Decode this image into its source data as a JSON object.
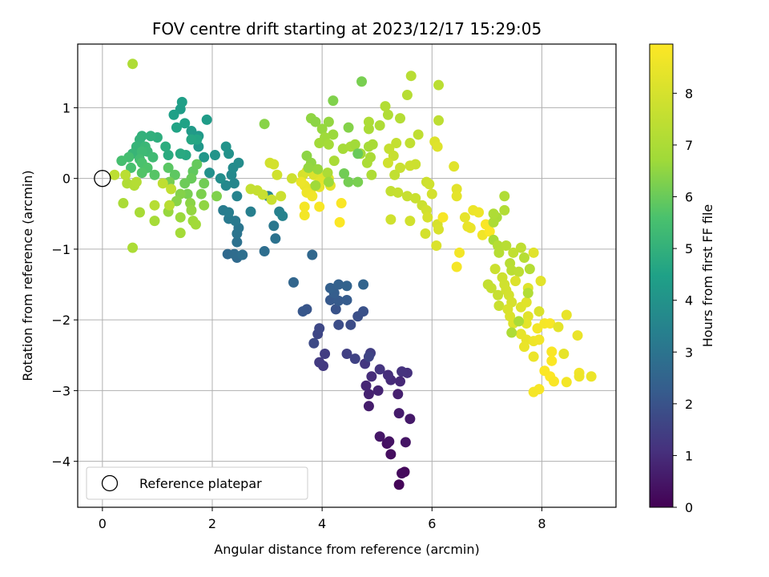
{
  "chart_data": {
    "type": "scatter",
    "title": "FOV centre drift starting at 2023/12/17 15:29:05",
    "xlabel": "Angular distance from reference (arcmin)",
    "ylabel": "Rotation from reference (arcmin)",
    "xlim": [
      -0.45,
      9.35
    ],
    "ylim": [
      -4.65,
      1.9
    ],
    "xticks": [
      0,
      2,
      4,
      6,
      8
    ],
    "yticks": [
      -4,
      -3,
      -2,
      -1,
      0,
      1
    ],
    "grid": true,
    "colormap": "viridis",
    "colorbar": {
      "label": "Hours from first FF file",
      "range": [
        0,
        8.95
      ],
      "ticks": [
        0,
        1,
        2,
        3,
        4,
        5,
        6,
        7,
        8
      ]
    },
    "legend": {
      "placement": "lower-left",
      "entries": [
        "Reference platepar"
      ]
    },
    "reference_point": {
      "x": 0,
      "y": 0
    },
    "points": [
      [
        5.4,
        -4.33,
        0.1
      ],
      [
        5.5,
        -4.15,
        0.15
      ],
      [
        5.45,
        -4.17,
        0.2
      ],
      [
        5.25,
        -3.9,
        0.3
      ],
      [
        5.18,
        -3.75,
        0.35
      ],
      [
        5.22,
        -3.72,
        0.4
      ],
      [
        5.52,
        -3.73,
        0.45
      ],
      [
        5.05,
        -3.65,
        0.5
      ],
      [
        5.6,
        -3.4,
        0.55
      ],
      [
        5.4,
        -3.32,
        0.6
      ],
      [
        4.85,
        -3.22,
        0.65
      ],
      [
        5.38,
        -3.05,
        0.7
      ],
      [
        4.85,
        -3.05,
        0.75
      ],
      [
        5.02,
        -3.0,
        0.8
      ],
      [
        4.8,
        -2.93,
        0.85
      ],
      [
        5.42,
        -2.87,
        0.9
      ],
      [
        5.25,
        -2.85,
        0.95
      ],
      [
        4.9,
        -2.8,
        1.0
      ],
      [
        5.2,
        -2.78,
        1.05
      ],
      [
        5.55,
        -2.75,
        1.1
      ],
      [
        5.45,
        -2.73,
        1.15
      ],
      [
        5.05,
        -2.7,
        1.2
      ],
      [
        4.78,
        -2.62,
        1.25
      ],
      [
        4.02,
        -2.65,
        1.3
      ],
      [
        3.95,
        -2.6,
        1.35
      ],
      [
        4.05,
        -2.48,
        1.4
      ],
      [
        4.88,
        -2.47,
        1.45
      ],
      [
        4.45,
        -2.48,
        1.5
      ],
      [
        4.6,
        -2.55,
        1.55
      ],
      [
        4.85,
        -2.52,
        1.6
      ],
      [
        3.92,
        -2.2,
        1.65
      ],
      [
        3.95,
        -2.12,
        1.7
      ],
      [
        3.85,
        -2.33,
        1.75
      ],
      [
        4.52,
        -2.07,
        1.8
      ],
      [
        4.3,
        -2.07,
        1.85
      ],
      [
        4.65,
        -1.95,
        1.9
      ],
      [
        4.75,
        -1.88,
        1.95
      ],
      [
        4.25,
        -1.85,
        2.0
      ],
      [
        3.72,
        -1.85,
        2.05
      ],
      [
        3.65,
        -1.88,
        2.1
      ],
      [
        4.15,
        -1.72,
        2.15
      ],
      [
        4.3,
        -1.73,
        2.2
      ],
      [
        4.45,
        -1.72,
        2.25
      ],
      [
        4.22,
        -1.62,
        2.3
      ],
      [
        4.15,
        -1.55,
        2.35
      ],
      [
        4.3,
        -1.5,
        2.4
      ],
      [
        4.45,
        -1.52,
        2.45
      ],
      [
        4.75,
        -1.5,
        2.5
      ],
      [
        3.48,
        -1.47,
        2.55
      ],
      [
        3.82,
        -1.08,
        2.6
      ],
      [
        2.28,
        -1.07,
        2.65
      ],
      [
        2.45,
        -1.12,
        2.7
      ],
      [
        2.4,
        -1.07,
        2.75
      ],
      [
        2.95,
        -1.03,
        2.8
      ],
      [
        2.55,
        -1.08,
        2.85
      ],
      [
        2.45,
        -0.9,
        2.9
      ],
      [
        3.15,
        -0.85,
        2.95
      ],
      [
        2.45,
        -0.78,
        3.0
      ],
      [
        2.48,
        -0.7,
        3.05
      ],
      [
        3.12,
        -0.67,
        3.1
      ],
      [
        2.42,
        -0.6,
        3.15
      ],
      [
        2.3,
        -0.57,
        3.2
      ],
      [
        2.2,
        -0.45,
        3.25
      ],
      [
        2.3,
        -0.48,
        3.3
      ],
      [
        2.7,
        -0.47,
        3.35
      ],
      [
        3.22,
        -0.47,
        3.4
      ],
      [
        3.28,
        -0.53,
        3.45
      ],
      [
        2.45,
        -0.25,
        3.5
      ],
      [
        3.02,
        -0.25,
        3.55
      ],
      [
        2.4,
        -0.07,
        3.6
      ],
      [
        2.25,
        -0.1,
        3.65
      ],
      [
        2.35,
        0.05,
        3.7
      ],
      [
        2.38,
        0.15,
        3.75
      ],
      [
        2.48,
        0.22,
        3.8
      ],
      [
        2.15,
        0.0,
        3.85
      ],
      [
        1.95,
        0.08,
        3.9
      ],
      [
        2.3,
        0.35,
        3.95
      ],
      [
        2.25,
        0.45,
        4.0
      ],
      [
        2.05,
        0.33,
        4.05
      ],
      [
        1.85,
        0.3,
        4.1
      ],
      [
        1.75,
        0.45,
        4.15
      ],
      [
        1.75,
        0.6,
        4.2
      ],
      [
        1.62,
        0.67,
        4.25
      ],
      [
        1.9,
        0.83,
        4.3
      ],
      [
        1.42,
        0.98,
        4.35
      ],
      [
        1.45,
        1.08,
        4.4
      ],
      [
        1.3,
        0.9,
        4.45
      ],
      [
        1.5,
        0.78,
        4.5
      ],
      [
        1.35,
        0.72,
        4.55
      ],
      [
        1.72,
        0.55,
        4.6
      ],
      [
        1.62,
        0.55,
        4.65
      ],
      [
        1.52,
        0.33,
        4.7
      ],
      [
        1.42,
        0.35,
        4.75
      ],
      [
        1.2,
        0.33,
        4.8
      ],
      [
        1.15,
        0.45,
        4.85
      ],
      [
        1.0,
        0.58,
        4.9
      ],
      [
        0.88,
        0.6,
        4.95
      ],
      [
        0.72,
        0.6,
        5.0
      ],
      [
        0.68,
        0.55,
        5.05
      ],
      [
        0.62,
        0.45,
        5.1
      ],
      [
        0.55,
        0.35,
        5.15
      ],
      [
        0.78,
        0.45,
        5.2
      ],
      [
        0.82,
        0.38,
        5.25
      ],
      [
        0.72,
        0.38,
        5.3
      ],
      [
        0.92,
        0.3,
        5.35
      ],
      [
        0.68,
        0.27,
        5.4
      ],
      [
        0.48,
        0.3,
        5.45
      ],
      [
        0.35,
        0.25,
        5.5
      ],
      [
        0.52,
        0.15,
        5.55
      ],
      [
        0.72,
        0.22,
        5.6
      ],
      [
        0.82,
        0.15,
        5.65
      ],
      [
        0.72,
        0.08,
        5.7
      ],
      [
        0.95,
        0.05,
        5.75
      ],
      [
        1.2,
        0.15,
        5.8
      ],
      [
        1.32,
        0.05,
        5.85
      ],
      [
        1.65,
        0.1,
        5.9
      ],
      [
        1.72,
        0.2,
        5.95
      ],
      [
        1.62,
        0.0,
        6.0
      ],
      [
        1.5,
        -0.07,
        6.05
      ],
      [
        1.85,
        -0.07,
        6.1
      ],
      [
        1.22,
        -0.05,
        6.15
      ],
      [
        1.55,
        -0.22,
        6.2
      ],
      [
        1.8,
        -0.22,
        6.25
      ],
      [
        2.08,
        -0.25,
        6.3
      ],
      [
        1.42,
        -0.22,
        6.35
      ],
      [
        1.35,
        -0.32,
        6.4
      ],
      [
        1.6,
        -0.35,
        6.45
      ],
      [
        1.85,
        -0.38,
        6.5
      ],
      [
        1.62,
        -0.45,
        6.55
      ],
      [
        1.2,
        -0.47,
        6.6
      ],
      [
        1.42,
        -0.55,
        6.65
      ],
      [
        1.65,
        -0.6,
        6.7
      ],
      [
        1.7,
        -0.65,
        6.75
      ],
      [
        1.42,
        -0.77,
        6.8
      ],
      [
        0.95,
        -0.6,
        6.85
      ],
      [
        0.68,
        -0.48,
        6.9
      ],
      [
        0.38,
        -0.35,
        6.95
      ],
      [
        0.55,
        -0.98,
        7.0
      ],
      [
        0.55,
        1.62,
        7.05
      ],
      [
        0.45,
        -0.07,
        7.1
      ],
      [
        0.58,
        -0.1,
        7.15
      ],
      [
        0.62,
        -0.05,
        7.2
      ],
      [
        0.95,
        -0.38,
        7.25
      ],
      [
        1.22,
        -0.38,
        7.3
      ],
      [
        0.42,
        0.05,
        7.35
      ],
      [
        0.22,
        0.05,
        7.4
      ],
      [
        1.1,
        -0.07,
        7.45
      ],
      [
        1.25,
        -0.15,
        7.5
      ],
      [
        2.7,
        -0.15,
        7.55
      ],
      [
        2.82,
        -0.17,
        7.6
      ],
      [
        2.92,
        -0.23,
        7.65
      ],
      [
        3.08,
        -0.3,
        7.7
      ],
      [
        3.25,
        -0.25,
        7.75
      ],
      [
        3.45,
        0.0,
        7.8
      ],
      [
        3.18,
        0.05,
        7.85
      ],
      [
        3.05,
        0.22,
        7.9
      ],
      [
        3.12,
        0.2,
        7.95
      ],
      [
        3.65,
        0.05,
        8.0
      ],
      [
        3.72,
        0.1,
        8.05
      ],
      [
        3.85,
        0.05,
        8.1
      ],
      [
        3.88,
        0.08,
        8.15
      ],
      [
        4.02,
        0.02,
        8.2
      ],
      [
        4.12,
        0.0,
        8.25
      ],
      [
        3.95,
        -0.05,
        8.3
      ],
      [
        4.15,
        -0.1,
        8.35
      ],
      [
        3.95,
        -0.12,
        8.4
      ],
      [
        3.8,
        -0.15,
        8.45
      ],
      [
        3.68,
        -0.1,
        8.5
      ],
      [
        3.62,
        -0.05,
        8.55
      ],
      [
        3.72,
        -0.2,
        8.6
      ],
      [
        3.82,
        -0.25,
        8.65
      ],
      [
        3.68,
        -0.52,
        8.7
      ],
      [
        3.68,
        -0.4,
        8.75
      ],
      [
        3.95,
        -0.4,
        8.8
      ],
      [
        4.35,
        -0.35,
        8.85
      ],
      [
        4.32,
        -0.62,
        8.9
      ],
      [
        2.95,
        0.77,
        6.4
      ],
      [
        3.8,
        0.85,
        6.5
      ],
      [
        3.88,
        0.8,
        6.45
      ],
      [
        4.12,
        0.8,
        6.55
      ],
      [
        4.0,
        0.7,
        6.6
      ],
      [
        4.2,
        0.62,
        6.65
      ],
      [
        4.05,
        0.58,
        6.7
      ],
      [
        3.95,
        0.5,
        6.75
      ],
      [
        4.12,
        0.48,
        6.8
      ],
      [
        4.38,
        0.42,
        6.85
      ],
      [
        4.52,
        0.45,
        6.9
      ],
      [
        4.22,
        0.25,
        6.95
      ],
      [
        4.1,
        0.08,
        7.0
      ],
      [
        4.2,
        1.1,
        6.3
      ],
      [
        4.48,
        0.72,
        6.35
      ],
      [
        3.72,
        0.32,
        6.45
      ],
      [
        3.8,
        0.22,
        6.5
      ],
      [
        3.75,
        0.15,
        6.55
      ],
      [
        3.92,
        0.13,
        6.6
      ],
      [
        4.12,
        -0.05,
        6.65
      ],
      [
        3.88,
        -0.1,
        6.7
      ],
      [
        4.6,
        0.48,
        6.75
      ],
      [
        4.7,
        0.35,
        6.8
      ],
      [
        4.85,
        0.45,
        6.85
      ],
      [
        4.92,
        0.48,
        6.9
      ],
      [
        4.85,
        0.7,
        6.95
      ],
      [
        4.85,
        0.8,
        7.0
      ],
      [
        5.05,
        0.75,
        7.05
      ],
      [
        5.2,
        0.9,
        7.1
      ],
      [
        5.15,
        1.02,
        7.15
      ],
      [
        5.42,
        0.85,
        7.2
      ],
      [
        5.55,
        1.18,
        7.25
      ],
      [
        5.62,
        1.45,
        7.3
      ],
      [
        6.12,
        1.32,
        7.35
      ],
      [
        6.12,
        0.82,
        7.4
      ],
      [
        5.75,
        0.62,
        7.45
      ],
      [
        5.6,
        0.5,
        7.5
      ],
      [
        5.35,
        0.5,
        7.55
      ],
      [
        5.22,
        0.42,
        7.6
      ],
      [
        5.3,
        0.32,
        7.65
      ],
      [
        5.42,
        0.15,
        7.7
      ],
      [
        5.7,
        0.2,
        7.75
      ],
      [
        5.6,
        0.18,
        7.8
      ],
      [
        5.2,
        0.22,
        7.85
      ],
      [
        4.88,
        0.3,
        6.95
      ],
      [
        4.82,
        0.22,
        7.0
      ],
      [
        4.9,
        0.05,
        7.05
      ],
      [
        4.72,
        1.37,
        6.2
      ],
      [
        4.65,
        0.35,
        6.0
      ],
      [
        4.4,
        0.07,
        6.1
      ],
      [
        4.48,
        -0.05,
        6.15
      ],
      [
        4.65,
        -0.05,
        6.2
      ],
      [
        5.32,
        0.05,
        7.5
      ],
      [
        5.25,
        -0.18,
        7.55
      ],
      [
        5.38,
        -0.2,
        7.6
      ],
      [
        5.55,
        -0.25,
        7.65
      ],
      [
        5.7,
        -0.28,
        7.7
      ],
      [
        5.82,
        -0.38,
        7.75
      ],
      [
        5.9,
        -0.05,
        7.8
      ],
      [
        5.95,
        -0.08,
        7.85
      ],
      [
        5.9,
        -0.45,
        7.9
      ],
      [
        6.0,
        -0.22,
        7.95
      ],
      [
        5.92,
        -0.55,
        8.0
      ],
      [
        5.25,
        -0.58,
        7.85
      ],
      [
        5.6,
        -0.6,
        7.9
      ],
      [
        5.88,
        -0.78,
        7.95
      ],
      [
        6.1,
        -0.65,
        8.0
      ],
      [
        6.12,
        -0.72,
        8.05
      ],
      [
        6.08,
        -0.95,
        8.1
      ],
      [
        6.05,
        0.52,
        8.15
      ],
      [
        6.1,
        0.45,
        8.2
      ],
      [
        6.4,
        0.17,
        8.25
      ],
      [
        6.45,
        -0.15,
        8.3
      ],
      [
        6.45,
        -0.25,
        8.35
      ],
      [
        6.6,
        -0.55,
        8.4
      ],
      [
        6.65,
        -0.68,
        8.45
      ],
      [
        6.7,
        -0.7,
        8.5
      ],
      [
        6.75,
        -0.45,
        8.55
      ],
      [
        6.85,
        -0.48,
        8.6
      ],
      [
        6.92,
        -0.8,
        8.65
      ],
      [
        6.5,
        -1.05,
        8.7
      ],
      [
        6.45,
        -1.25,
        8.75
      ],
      [
        6.2,
        -0.55,
        8.8
      ],
      [
        6.98,
        -0.65,
        8.85
      ],
      [
        7.05,
        -0.75,
        8.9
      ],
      [
        7.12,
        -0.87,
        6.9
      ],
      [
        7.18,
        -0.55,
        6.95
      ],
      [
        7.12,
        -0.62,
        7.0
      ],
      [
        7.12,
        -0.5,
        7.05
      ],
      [
        7.32,
        -0.25,
        7.1
      ],
      [
        7.32,
        -0.45,
        7.15
      ],
      [
        7.2,
        -0.95,
        7.2
      ],
      [
        7.22,
        -1.05,
        7.25
      ],
      [
        7.42,
        -1.2,
        7.3
      ],
      [
        7.45,
        -1.3,
        7.35
      ],
      [
        7.58,
        -1.32,
        7.4
      ],
      [
        7.62,
        -0.98,
        7.45
      ],
      [
        7.48,
        -1.05,
        7.5
      ],
      [
        7.02,
        -1.5,
        7.55
      ],
      [
        7.08,
        -1.55,
        7.6
      ],
      [
        7.2,
        -1.65,
        7.65
      ],
      [
        7.22,
        -1.8,
        7.7
      ],
      [
        7.15,
        -1.28,
        7.75
      ],
      [
        7.28,
        -1.4,
        7.8
      ],
      [
        7.32,
        -1.5,
        7.85
      ],
      [
        7.35,
        -1.58,
        7.9
      ],
      [
        7.4,
        -1.65,
        7.95
      ],
      [
        7.45,
        -1.75,
        8.0
      ],
      [
        7.38,
        -1.85,
        8.05
      ],
      [
        7.42,
        -1.95,
        8.1
      ],
      [
        7.48,
        -2.05,
        8.15
      ],
      [
        7.62,
        -1.82,
        8.2
      ],
      [
        7.72,
        -1.75,
        8.25
      ],
      [
        7.75,
        -1.95,
        8.3
      ],
      [
        7.72,
        -2.05,
        8.35
      ],
      [
        7.62,
        -2.2,
        8.4
      ],
      [
        7.72,
        -2.28,
        8.45
      ],
      [
        7.68,
        -2.38,
        8.5
      ],
      [
        7.85,
        -2.52,
        8.55
      ],
      [
        7.85,
        -2.3,
        8.6
      ],
      [
        7.95,
        -2.28,
        8.65
      ],
      [
        7.92,
        -2.12,
        8.7
      ],
      [
        8.05,
        -2.05,
        8.75
      ],
      [
        8.15,
        -2.05,
        8.8
      ],
      [
        8.18,
        -2.45,
        8.85
      ],
      [
        8.18,
        -2.58,
        8.9
      ],
      [
        8.15,
        -2.8,
        8.95
      ],
      [
        8.05,
        -2.72,
        8.9
      ],
      [
        8.22,
        -2.87,
        8.85
      ],
      [
        7.95,
        -2.98,
        8.8
      ],
      [
        7.85,
        -3.02,
        8.75
      ],
      [
        8.45,
        -2.88,
        8.7
      ],
      [
        8.68,
        -2.75,
        8.65
      ],
      [
        8.68,
        -2.8,
        8.6
      ],
      [
        8.9,
        -2.8,
        8.55
      ],
      [
        8.65,
        -2.22,
        8.5
      ],
      [
        8.45,
        -1.93,
        8.45
      ],
      [
        8.4,
        -2.48,
        8.4
      ],
      [
        8.3,
        -2.1,
        8.35
      ],
      [
        7.98,
        -1.45,
        8.3
      ],
      [
        7.85,
        -1.05,
        8.25
      ],
      [
        7.75,
        -1.55,
        8.2
      ],
      [
        7.52,
        -1.45,
        8.15
      ],
      [
        7.95,
        -1.88,
        8.1
      ],
      [
        7.58,
        -2.02,
        7.0
      ],
      [
        7.45,
        -2.18,
        7.05
      ],
      [
        7.75,
        -1.62,
        7.15
      ],
      [
        7.78,
        -1.28,
        7.2
      ],
      [
        7.68,
        -1.12,
        7.25
      ],
      [
        7.35,
        -0.95,
        7.3
      ]
    ]
  }
}
